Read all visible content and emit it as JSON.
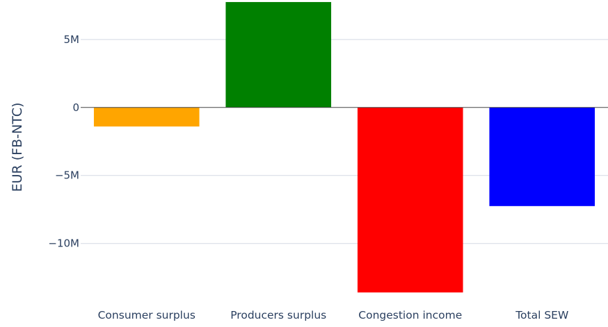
{
  "chart_data": {
    "type": "bar",
    "title": "",
    "xlabel": "",
    "ylabel": "EUR (FB-NTC)",
    "categories": [
      "Consumer surplus",
      "Producers surplus",
      "Congestion income",
      "Total SEW"
    ],
    "values": [
      -1400000,
      7750000,
      -13600000,
      -7250000
    ],
    "colors": [
      "#ffa500",
      "#008000",
      "#ff0000",
      "#0000ff"
    ],
    "ylim": [
      -14200000,
      7900000
    ],
    "yticks": [
      {
        "value": 5000000,
        "label": "5M"
      },
      {
        "value": 0,
        "label": "0"
      },
      {
        "value": -5000000,
        "label": "−5M"
      },
      {
        "value": -10000000,
        "label": "−10M"
      }
    ],
    "grid": true,
    "legend": "none",
    "gridColor": "#d3d9e3",
    "zeroLineColor": "#444444",
    "textColor": "#2a3f5f"
  }
}
